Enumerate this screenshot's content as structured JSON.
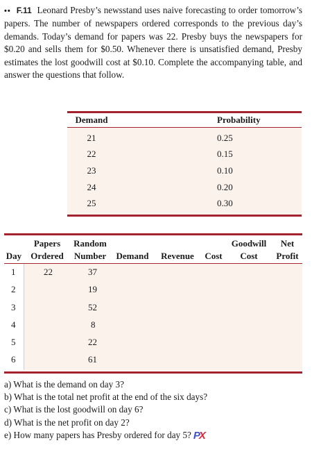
{
  "problem": {
    "bullets": "••",
    "number": "F.11",
    "text": "Leonard Presby’s newsstand uses naive forecasting to order tomorrow’s papers. The number of newspapers ordered corresponds to the previous day’s demands. Today’s demand for papers was 22. Presby buys the newspapers for $0.20 and sells them for $0.50. Whenever there is unsatisfied demand, Presby estimates the lost goodwill cost at $0.10. Complete the accompanying table, and answer the questions that follow."
  },
  "probability_table": {
    "headers": [
      "Demand",
      "Probability"
    ],
    "rows": [
      [
        "21",
        "0.25"
      ],
      [
        "22",
        "0.15"
      ],
      [
        "23",
        "0.10"
      ],
      [
        "24",
        "0.20"
      ],
      [
        "25",
        "0.30"
      ]
    ]
  },
  "simulation_table": {
    "headers": [
      {
        "line1": "",
        "line2": "Day"
      },
      {
        "line1": "Papers",
        "line2": "Ordered"
      },
      {
        "line1": "Random",
        "line2": "Number"
      },
      {
        "line1": "",
        "line2": "Demand"
      },
      {
        "line1": "",
        "line2": "Revenue"
      },
      {
        "line1": "",
        "line2": "Cost"
      },
      {
        "line1": "Goodwill",
        "line2": "Cost"
      },
      {
        "line1": "Net",
        "line2": "Profit"
      }
    ],
    "rows": [
      {
        "day": "1",
        "ordered": "22",
        "random": "37"
      },
      {
        "day": "2",
        "ordered": "",
        "random": "19"
      },
      {
        "day": "3",
        "ordered": "",
        "random": "52"
      },
      {
        "day": "4",
        "ordered": "",
        "random": "8"
      },
      {
        "day": "5",
        "ordered": "",
        "random": "22"
      },
      {
        "day": "6",
        "ordered": "",
        "random": "61"
      }
    ]
  },
  "questions": [
    "a) What is the demand on day 3?",
    "b) What is the total net profit at the end of the six days?",
    "c) What is the lost goodwill on day 6?",
    "d) What is the net profit on day 2?",
    "e) How many papers has Presby ordered for day 5?"
  ],
  "logo": {
    "p": "P",
    "x": "X"
  },
  "colors": {
    "rule": "#a3222e",
    "shade": "#fbf2ec",
    "logo_p": "#3c52c8",
    "logo_x": "#e0243a"
  }
}
